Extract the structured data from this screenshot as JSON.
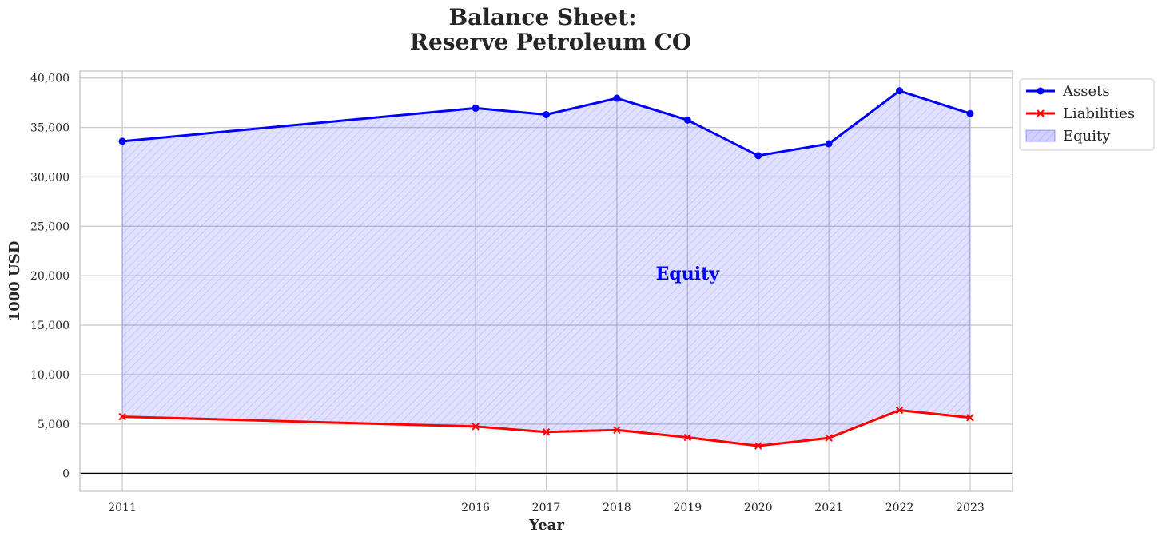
{
  "chart_data": {
    "type": "area",
    "title_line1": "Balance Sheet:",
    "title_line2": "Reserve Petroleum CO",
    "xlabel": "Year",
    "ylabel": "1000 USD",
    "x": [
      2011,
      2016,
      2017,
      2018,
      2019,
      2020,
      2021,
      2022,
      2023
    ],
    "xlim": [
      2010.4,
      2023.6
    ],
    "ylim": [
      -1800,
      40700
    ],
    "yticks": [
      0,
      5000,
      10000,
      15000,
      20000,
      25000,
      30000,
      35000,
      40000
    ],
    "ytick_labels": [
      "0",
      "5,000",
      "10,000",
      "15,000",
      "20,000",
      "25,000",
      "30,000",
      "35,000",
      "40,000"
    ],
    "xtick_labels": [
      "2011",
      "2016",
      "2017",
      "2018",
      "2019",
      "2020",
      "2021",
      "2022",
      "2023"
    ],
    "grid": true,
    "legend_position": "upper right, outside plot",
    "series": [
      {
        "name": "Assets",
        "kind": "line",
        "marker": "circle",
        "color": "#0000ff",
        "values": [
          33600,
          36950,
          36300,
          37950,
          35750,
          32150,
          33350,
          38700,
          36400
        ]
      },
      {
        "name": "Liabilities",
        "kind": "line",
        "marker": "x",
        "color": "#ff0000",
        "values": [
          5750,
          4750,
          4200,
          4400,
          3650,
          2800,
          3600,
          6400,
          5650
        ]
      },
      {
        "name": "Equity",
        "kind": "fill_between",
        "color": "#0000ff",
        "fill_alpha": 0.12
      }
    ],
    "annotations": [
      {
        "text": "Equity",
        "x": 2019,
        "y": 19600,
        "color": "#0000ff"
      }
    ]
  }
}
